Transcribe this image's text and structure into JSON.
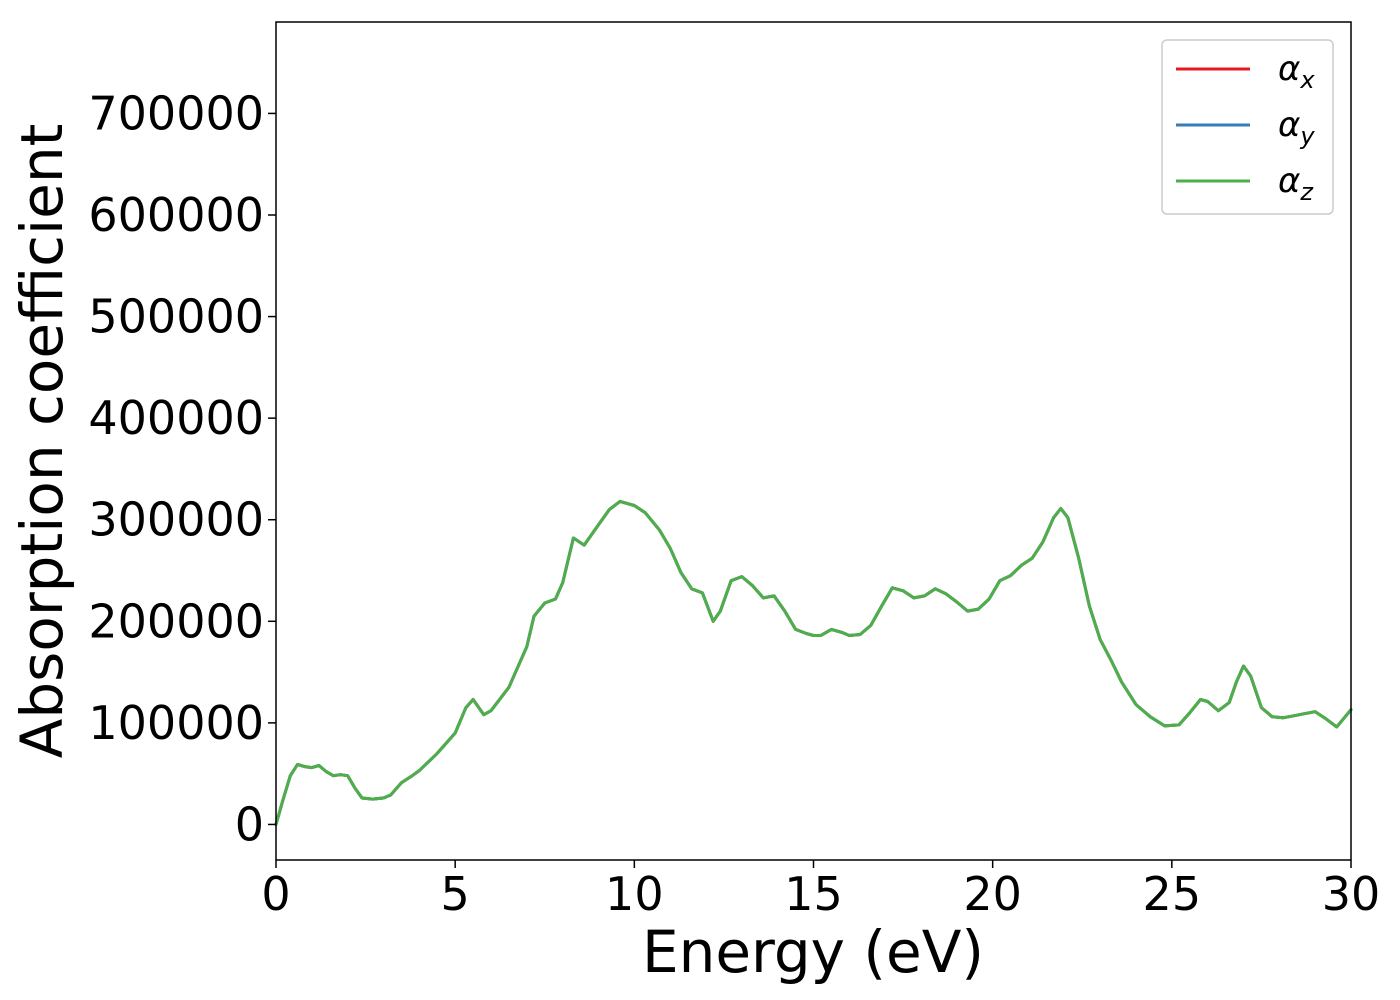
{
  "chart_data": {
    "type": "line",
    "title": "",
    "xlabel": "Energy (eV)",
    "ylabel": "Absorption coefficient",
    "xlim": [
      0,
      30
    ],
    "ylim": [
      -35000,
      790000
    ],
    "xticks": [
      0,
      5,
      10,
      15,
      20,
      25,
      30
    ],
    "xtick_labels": [
      "0",
      "5",
      "10",
      "15",
      "20",
      "25",
      "30"
    ],
    "yticks": [
      0,
      100000,
      200000,
      300000,
      400000,
      500000,
      600000,
      700000
    ],
    "ytick_labels": [
      "0",
      "100000",
      "200000",
      "300000",
      "400000",
      "500000",
      "600000",
      "700000"
    ],
    "grid": false,
    "legend_position": "top-right",
    "series": [
      {
        "name": "α",
        "subscript": "x",
        "color": "#e41a1c"
      },
      {
        "name": "α",
        "subscript": "y",
        "color": "#377eb8"
      },
      {
        "name": "α",
        "subscript": "z",
        "color": "#4daf4a"
      }
    ],
    "shared_curve": {
      "note_visible": false,
      "x": [
        0,
        0.2,
        0.4,
        0.6,
        0.8,
        1.0,
        1.2,
        1.4,
        1.6,
        1.8,
        2.0,
        2.2,
        2.4,
        2.7,
        3.0,
        3.2,
        3.5,
        3.8,
        4.0,
        4.5,
        5.0,
        5.3,
        5.5,
        5.8,
        6.0,
        6.5,
        7.0,
        7.2,
        7.5,
        7.8,
        8.0,
        8.3,
        8.6,
        9.0,
        9.3,
        9.6,
        10.0,
        10.3,
        10.7,
        11.0,
        11.3,
        11.6,
        11.9,
        12.2,
        12.4,
        12.7,
        13.0,
        13.3,
        13.6,
        13.9,
        14.2,
        14.5,
        14.8,
        15.0,
        15.2,
        15.5,
        15.8,
        16.0,
        16.3,
        16.6,
        16.9,
        17.2,
        17.5,
        17.8,
        18.1,
        18.4,
        18.7,
        19.0,
        19.3,
        19.6,
        19.9,
        20.2,
        20.5,
        20.8,
        21.1,
        21.4,
        21.7,
        21.9,
        22.1,
        22.4,
        22.7,
        23.0,
        23.3,
        23.6,
        24.0,
        24.4,
        24.8,
        25.2,
        25.5,
        25.8,
        26.0,
        26.3,
        26.6,
        26.8,
        27.0,
        27.2,
        27.5,
        27.8,
        28.1,
        28.4,
        28.7,
        29.0,
        29.3,
        29.6,
        30.0
      ],
      "y": [
        0,
        25000,
        48000,
        59000,
        57000,
        56000,
        58000,
        52000,
        48000,
        49000,
        48000,
        36000,
        26000,
        25000,
        26000,
        29000,
        41000,
        48000,
        53000,
        70000,
        90000,
        115000,
        123000,
        108000,
        112000,
        135000,
        175000,
        205000,
        218000,
        222000,
        238000,
        282000,
        275000,
        295000,
        310000,
        318000,
        314000,
        307000,
        290000,
        272000,
        248000,
        232000,
        228000,
        200000,
        210000,
        240000,
        244000,
        235000,
        223000,
        225000,
        210000,
        192000,
        188000,
        186000,
        186000,
        192000,
        189000,
        186000,
        187000,
        196000,
        215000,
        233000,
        230000,
        223000,
        225000,
        232000,
        227000,
        219000,
        210000,
        212000,
        222000,
        240000,
        245000,
        255000,
        262000,
        278000,
        302000,
        311000,
        302000,
        262000,
        215000,
        182000,
        162000,
        140000,
        118000,
        106000,
        97000,
        98000,
        110000,
        123000,
        121000,
        112000,
        120000,
        140000,
        156000,
        146000,
        115000,
        106000,
        105000,
        107000,
        109000,
        111000,
        104000,
        96000,
        113000
      ]
    }
  }
}
